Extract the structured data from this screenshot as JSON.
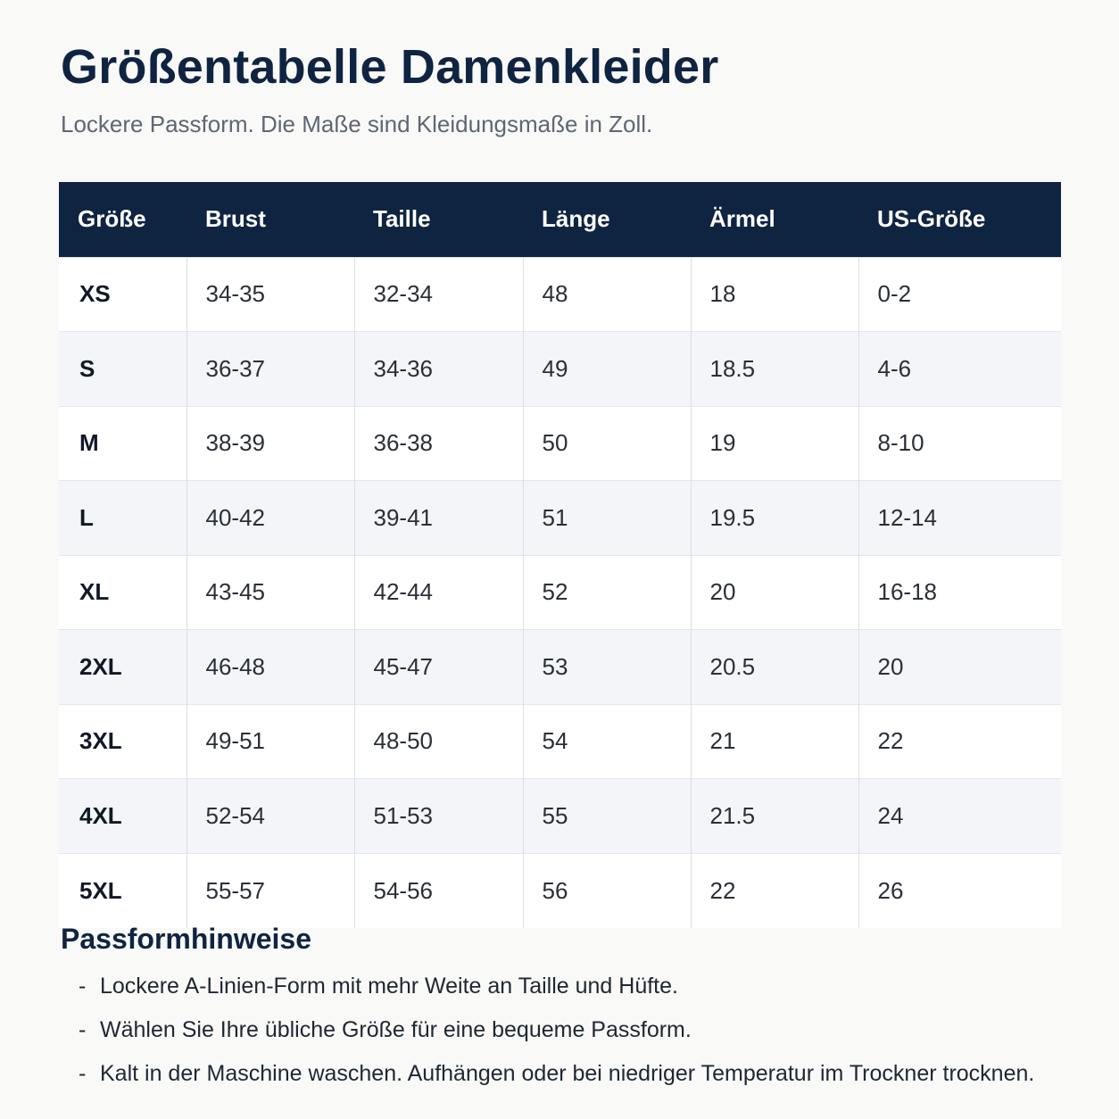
{
  "header": {
    "title": "Größentabelle Damenkleider",
    "subtitle": "Lockere Passform. Die Maße sind Kleidungsmaße in Zoll."
  },
  "table": {
    "columns": [
      "Größe",
      "Brust",
      "Taille",
      "Länge",
      "Ärmel",
      "US-Größe"
    ],
    "rows": [
      [
        "XS",
        "34-35",
        "32-34",
        "48",
        "18",
        "0-2"
      ],
      [
        "S",
        "36-37",
        "34-36",
        "49",
        "18.5",
        "4-6"
      ],
      [
        "M",
        "38-39",
        "36-38",
        "50",
        "19",
        "8-10"
      ],
      [
        "L",
        "40-42",
        "39-41",
        "51",
        "19.5",
        "12-14"
      ],
      [
        "XL",
        "43-45",
        "42-44",
        "52",
        "20",
        "16-18"
      ],
      [
        "2XL",
        "46-48",
        "45-47",
        "53",
        "20.5",
        "20"
      ],
      [
        "3XL",
        "49-51",
        "48-50",
        "54",
        "21",
        "22"
      ],
      [
        "4XL",
        "52-54",
        "51-53",
        "55",
        "21.5",
        "24"
      ],
      [
        "5XL",
        "55-57",
        "54-56",
        "56",
        "22",
        "26"
      ]
    ]
  },
  "notes": {
    "heading": "Passformhinweise",
    "bullet": "-",
    "items": [
      "Lockere A-Linien-Form mit mehr Weite an Taille und Hüfte.",
      "Wählen Sie Ihre übliche Größe für eine bequeme Passform.",
      "Kalt in der Maschine waschen. Aufhängen oder bei niedriger Temperatur im Trockner trocknen."
    ]
  },
  "colors": {
    "header_background": "#0f2441",
    "title_color": "#0f2441",
    "row_alt_background": "#f3f5f8",
    "page_background": "#f9f9f8"
  }
}
